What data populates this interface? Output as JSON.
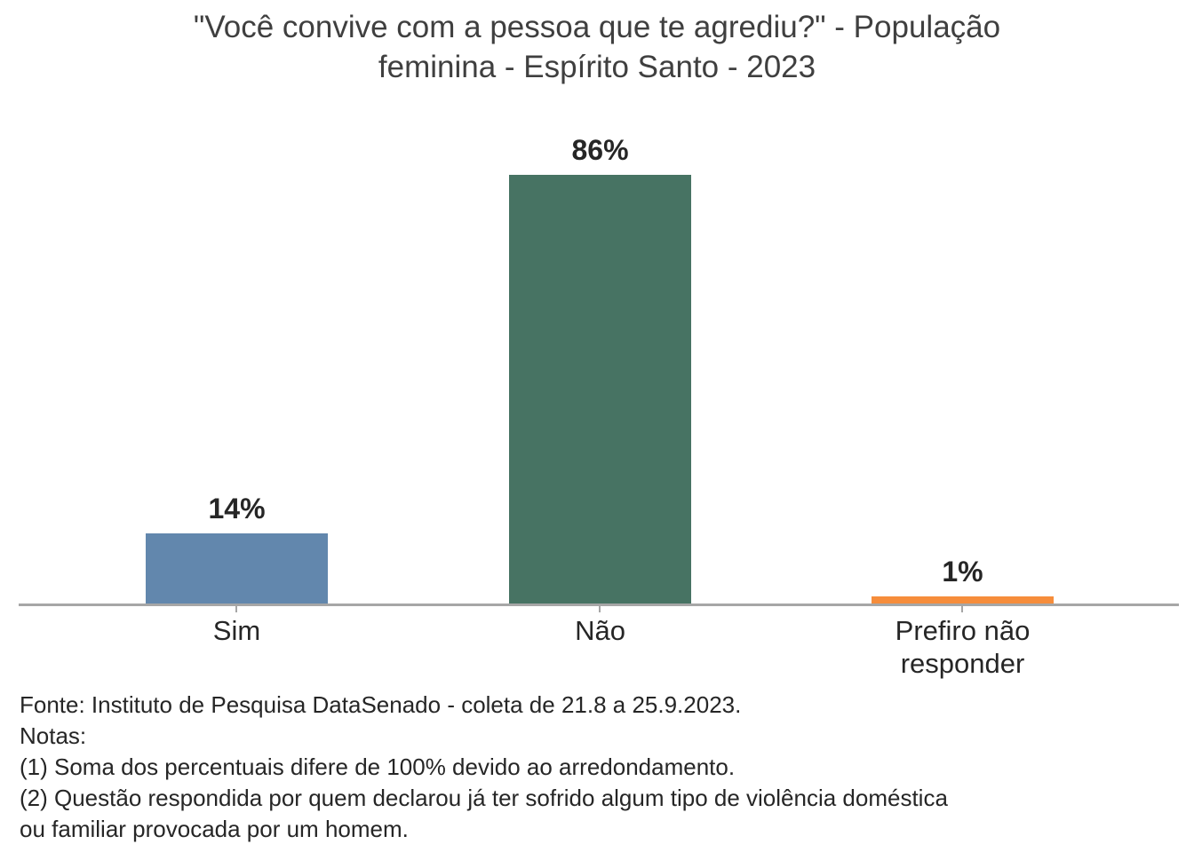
{
  "title": {
    "line1": "\"Você convive com a pessoa que te agrediu?\" - População",
    "line2": "feminina - Espírito Santo - 2023"
  },
  "chart_data": {
    "type": "bar",
    "title": "\"Você convive com a pessoa que te agrediu?\" - População feminina - Espírito Santo - 2023",
    "categories": [
      "Sim",
      "Não",
      "Prefiro não responder"
    ],
    "values": [
      14,
      86,
      1
    ],
    "value_labels": [
      "14%",
      "86%",
      "1%"
    ],
    "unit": "%",
    "ylim": [
      0,
      100
    ],
    "grid": false,
    "legend": false,
    "y_axis_visible": false,
    "colors": [
      "#6287ad",
      "#477363",
      "#f68d3b"
    ],
    "axis_color": "#a6a6a6"
  },
  "footer": {
    "source": "Fonte: Instituto de Pesquisa DataSenado - coleta de 21.8 a 25.9.2023.",
    "notes_label": "Notas:",
    "note1": "(1) Soma dos percentuais difere de 100% devido ao arredondamento.",
    "note2": "(2) Questão respondida por quem declarou já ter sofrido algum tipo de violência doméstica ou familiar provocada por um homem."
  },
  "colors": {
    "title_text": "#3f3f3f",
    "label_text": "#262626",
    "background": "#ffffff"
  }
}
